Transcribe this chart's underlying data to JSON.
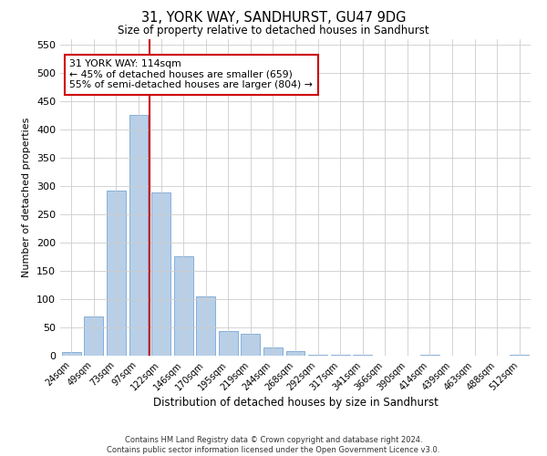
{
  "title": "31, YORK WAY, SANDHURST, GU47 9DG",
  "subtitle": "Size of property relative to detached houses in Sandhurst",
  "xlabel": "Distribution of detached houses by size in Sandhurst",
  "ylabel": "Number of detached properties",
  "bar_color": "#b8cfe8",
  "bar_edge_color": "#6699cc",
  "categories": [
    "24sqm",
    "49sqm",
    "73sqm",
    "97sqm",
    "122sqm",
    "146sqm",
    "170sqm",
    "195sqm",
    "219sqm",
    "244sqm",
    "268sqm",
    "292sqm",
    "317sqm",
    "341sqm",
    "366sqm",
    "390sqm",
    "414sqm",
    "439sqm",
    "463sqm",
    "488sqm",
    "512sqm"
  ],
  "values": [
    7,
    70,
    292,
    425,
    288,
    175,
    105,
    43,
    38,
    15,
    8,
    2,
    1,
    1,
    0,
    0,
    1,
    0,
    0,
    0,
    2
  ],
  "ylim": [
    0,
    560
  ],
  "yticks": [
    0,
    50,
    100,
    150,
    200,
    250,
    300,
    350,
    400,
    450,
    500,
    550
  ],
  "vline_index": 4,
  "annotation_text": "31 YORK WAY: 114sqm\n← 45% of detached houses are smaller (659)\n55% of semi-detached houses are larger (804) →",
  "annotation_box_color": "#ffffff",
  "annotation_box_edge": "#cc0000",
  "vline_color": "#cc0000",
  "footer_line1": "Contains HM Land Registry data © Crown copyright and database right 2024.",
  "footer_line2": "Contains public sector information licensed under the Open Government Licence v3.0.",
  "background_color": "#ffffff",
  "grid_color": "#cccccc",
  "fig_width": 6.0,
  "fig_height": 5.0
}
